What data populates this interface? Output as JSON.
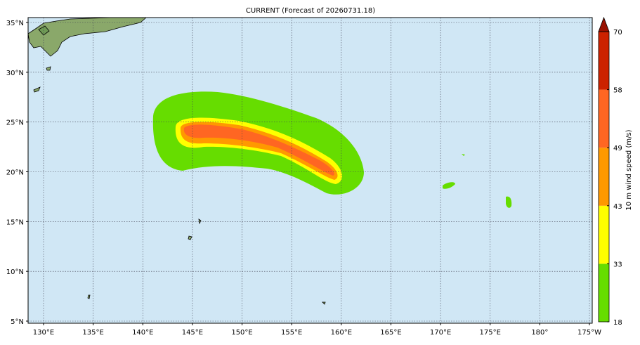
{
  "map": {
    "title": "CURRENT (Forecast of 20260731.18)",
    "lon_ticks": [
      {
        "value": 130,
        "label": "130°E"
      },
      {
        "value": 135,
        "label": "135°E"
      },
      {
        "value": 140,
        "label": "140°E"
      },
      {
        "value": 145,
        "label": "145°E"
      },
      {
        "value": 150,
        "label": "150°E"
      },
      {
        "value": 155,
        "label": "155°E"
      },
      {
        "value": 160,
        "label": "160°E"
      },
      {
        "value": 165,
        "label": "165°E"
      },
      {
        "value": 170,
        "label": "170°E"
      },
      {
        "value": 175,
        "label": "175°E"
      },
      {
        "value": 180,
        "label": "180°"
      },
      {
        "value": 185,
        "label": "175°W"
      }
    ],
    "lat_ticks": [
      {
        "value": 35,
        "label": "35°N"
      },
      {
        "value": 30,
        "label": "30°N"
      },
      {
        "value": 25,
        "label": "25°N"
      },
      {
        "value": 20,
        "label": "20°N"
      },
      {
        "value": 15,
        "label": "15°N"
      },
      {
        "value": 10,
        "label": "10°N"
      },
      {
        "value": 5,
        "label": "5°N"
      }
    ],
    "colorbar": {
      "label": "10 m wind speed (m/s)",
      "ticks": [
        18,
        33,
        43,
        49,
        58,
        70
      ],
      "colors": [
        "#66dd00",
        "#ffff00",
        "#ff9900",
        "#ff6622",
        "#cc2200"
      ],
      "extend_color": "#991100"
    }
  }
}
